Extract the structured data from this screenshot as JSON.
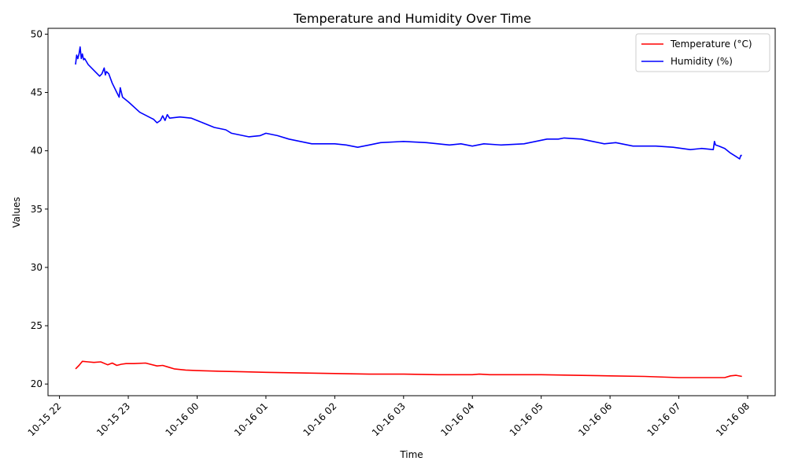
{
  "chart_data": {
    "type": "line",
    "title": "Temperature and Humidity Over Time",
    "xlabel": "Time",
    "ylabel": "Values",
    "xlim": [
      "2024-10-15 21:50",
      "2024-10-16 08:24"
    ],
    "ylim": [
      19,
      50.5
    ],
    "x_ticks": [
      "10-15 22",
      "10-15 23",
      "10-16 00",
      "10-16 01",
      "10-16 02",
      "10-16 03",
      "10-16 04",
      "10-16 05",
      "10-16 06",
      "10-16 07",
      "10-16 08"
    ],
    "y_ticks": [
      "20",
      "25",
      "30",
      "35",
      "40",
      "45",
      "50"
    ],
    "grid": false,
    "legend_position": "top-right",
    "series": [
      {
        "name": "Temperature (°C)",
        "color": "#ff0000",
        "x": [
          "2024-10-15 22:14",
          "2024-10-15 22:17",
          "2024-10-15 22:20",
          "2024-10-15 22:25",
          "2024-10-15 22:30",
          "2024-10-15 22:36",
          "2024-10-15 22:42",
          "2024-10-15 22:46",
          "2024-10-15 22:50",
          "2024-10-15 22:54",
          "2024-10-15 22:58",
          "2024-10-15 23:05",
          "2024-10-15 23:15",
          "2024-10-15 23:25",
          "2024-10-15 23:30",
          "2024-10-15 23:35",
          "2024-10-15 23:40",
          "2024-10-15 23:50",
          "2024-10-16 00:00",
          "2024-10-16 00:20",
          "2024-10-16 00:40",
          "2024-10-16 01:00",
          "2024-10-16 01:30",
          "2024-10-16 02:00",
          "2024-10-16 02:30",
          "2024-10-16 03:00",
          "2024-10-16 03:30",
          "2024-10-16 04:00",
          "2024-10-16 04:06",
          "2024-10-16 04:15",
          "2024-10-16 04:40",
          "2024-10-16 05:00",
          "2024-10-16 05:30",
          "2024-10-16 06:00",
          "2024-10-16 06:30",
          "2024-10-16 07:00",
          "2024-10-16 07:30",
          "2024-10-16 07:40",
          "2024-10-16 07:45",
          "2024-10-16 07:50",
          "2024-10-16 07:55"
        ],
        "values": [
          21.3,
          21.6,
          21.95,
          21.9,
          21.85,
          21.9,
          21.65,
          21.8,
          21.6,
          21.7,
          21.75,
          21.75,
          21.8,
          21.55,
          21.6,
          21.45,
          21.3,
          21.2,
          21.15,
          21.1,
          21.05,
          21.0,
          20.95,
          20.9,
          20.85,
          20.85,
          20.8,
          20.8,
          20.85,
          20.8,
          20.8,
          20.8,
          20.75,
          20.7,
          20.65,
          20.55,
          20.55,
          20.55,
          20.7,
          20.75,
          20.65
        ]
      },
      {
        "name": "Humidity (%)",
        "color": "#0000ff",
        "x": [
          "2024-10-15 22:14",
          "2024-10-15 22:15",
          "2024-10-15 22:16",
          "2024-10-15 22:17",
          "2024-10-15 22:18",
          "2024-10-15 22:19",
          "2024-10-15 22:20",
          "2024-10-15 22:21",
          "2024-10-15 22:22",
          "2024-10-15 22:25",
          "2024-10-15 22:30",
          "2024-10-15 22:35",
          "2024-10-15 22:37",
          "2024-10-15 22:39",
          "2024-10-15 22:40",
          "2024-10-15 22:41",
          "2024-10-15 22:43",
          "2024-10-15 22:46",
          "2024-10-15 22:50",
          "2024-10-15 22:52",
          "2024-10-15 22:53",
          "2024-10-15 22:55",
          "2024-10-15 23:00",
          "2024-10-15 23:10",
          "2024-10-15 23:20",
          "2024-10-15 23:22",
          "2024-10-15 23:25",
          "2024-10-15 23:28",
          "2024-10-15 23:30",
          "2024-10-15 23:32",
          "2024-10-15 23:34",
          "2024-10-15 23:36",
          "2024-10-15 23:45",
          "2024-10-15 23:55",
          "2024-10-16 00:05",
          "2024-10-16 00:15",
          "2024-10-16 00:25",
          "2024-10-16 00:30",
          "2024-10-16 00:45",
          "2024-10-16 00:55",
          "2024-10-16 01:00",
          "2024-10-16 01:10",
          "2024-10-16 01:20",
          "2024-10-16 01:30",
          "2024-10-16 01:40",
          "2024-10-16 02:00",
          "2024-10-16 02:10",
          "2024-10-16 02:20",
          "2024-10-16 02:30",
          "2024-10-16 02:40",
          "2024-10-16 03:00",
          "2024-10-16 03:20",
          "2024-10-16 03:40",
          "2024-10-16 03:50",
          "2024-10-16 04:00",
          "2024-10-16 04:10",
          "2024-10-16 04:25",
          "2024-10-16 04:45",
          "2024-10-16 04:55",
          "2024-10-16 05:05",
          "2024-10-16 05:15",
          "2024-10-16 05:20",
          "2024-10-16 05:35",
          "2024-10-16 05:45",
          "2024-10-16 05:55",
          "2024-10-16 06:05",
          "2024-10-16 06:20",
          "2024-10-16 06:30",
          "2024-10-16 06:40",
          "2024-10-16 06:55",
          "2024-10-16 07:10",
          "2024-10-16 07:20",
          "2024-10-16 07:30",
          "2024-10-16 07:31",
          "2024-10-16 07:32",
          "2024-10-16 07:35",
          "2024-10-16 07:40",
          "2024-10-16 07:45",
          "2024-10-16 07:50",
          "2024-10-16 07:53",
          "2024-10-16 07:54",
          "2024-10-16 07:55"
        ],
        "values": [
          47.4,
          48.2,
          47.9,
          48.3,
          48.9,
          47.9,
          48.3,
          47.8,
          47.9,
          47.4,
          46.9,
          46.4,
          46.6,
          47.1,
          46.5,
          46.8,
          46.6,
          45.8,
          45.0,
          44.6,
          45.4,
          44.6,
          44.2,
          43.3,
          42.8,
          42.7,
          42.4,
          42.6,
          43.0,
          42.6,
          43.1,
          42.8,
          42.9,
          42.8,
          42.4,
          42.0,
          41.8,
          41.5,
          41.2,
          41.3,
          41.5,
          41.3,
          41.0,
          40.8,
          40.6,
          40.6,
          40.5,
          40.3,
          40.5,
          40.7,
          40.8,
          40.7,
          40.5,
          40.6,
          40.4,
          40.6,
          40.5,
          40.6,
          40.8,
          41.0,
          41.0,
          41.1,
          41.0,
          40.8,
          40.6,
          40.7,
          40.4,
          40.4,
          40.4,
          40.3,
          40.1,
          40.2,
          40.1,
          40.8,
          40.5,
          40.4,
          40.2,
          39.8,
          39.5,
          39.3,
          39.6,
          39.6
        ]
      }
    ]
  }
}
